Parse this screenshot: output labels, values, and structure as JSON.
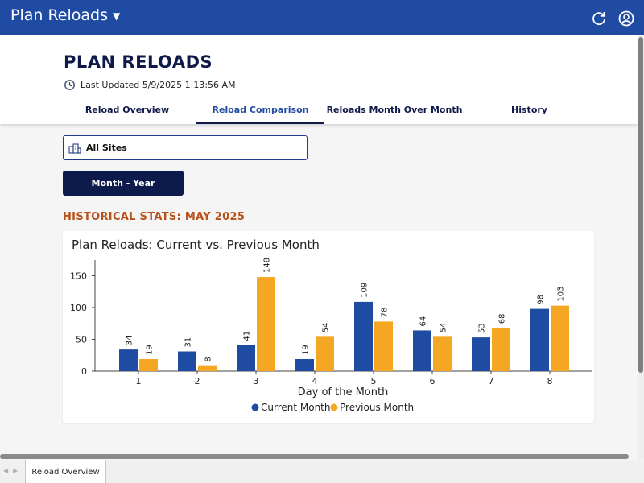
{
  "topbar": {
    "app_title": "Plan Reloads",
    "color": "#1f4ba3",
    "icons": [
      "chevron-down-icon",
      "refresh-icon",
      "user-circle-icon"
    ]
  },
  "header": {
    "title": "PLAN RELOADS",
    "last_updated": "Last Updated 5/9/2025 1:13:56 AM",
    "tabs": [
      {
        "label": "Reload Overview",
        "active": false
      },
      {
        "label": "Reload Comparison",
        "active": true
      },
      {
        "label": "Reloads Month Over Month",
        "active": false
      },
      {
        "label": "History",
        "active": false
      }
    ]
  },
  "filters": {
    "site_label": "All Sites",
    "month_year_label": "Month - Year"
  },
  "stats_heading": "HISTORICAL STATS: MAY 2025",
  "chart_data": {
    "type": "bar",
    "title": "Plan Reloads: Current vs. Previous Month",
    "xlabel": "Day of the Month",
    "ylabel": "",
    "categories": [
      "1",
      "2",
      "3",
      "4",
      "5",
      "6",
      "7",
      "8"
    ],
    "series": [
      {
        "name": "Current Month",
        "values": [
          34,
          31,
          41,
          19,
          109,
          64,
          53,
          98
        ],
        "color": "#1f4ba3"
      },
      {
        "name": "Previous Month",
        "values": [
          19,
          8,
          148,
          54,
          78,
          54,
          68,
          103
        ],
        "color": "#f5a623"
      }
    ],
    "yticks": [
      0,
      50,
      100,
      150
    ],
    "ylim": [
      0,
      175
    ],
    "grid": false,
    "legend": "bottom"
  },
  "bottom_bar": {
    "sheet_tab": "Reload Overview"
  }
}
